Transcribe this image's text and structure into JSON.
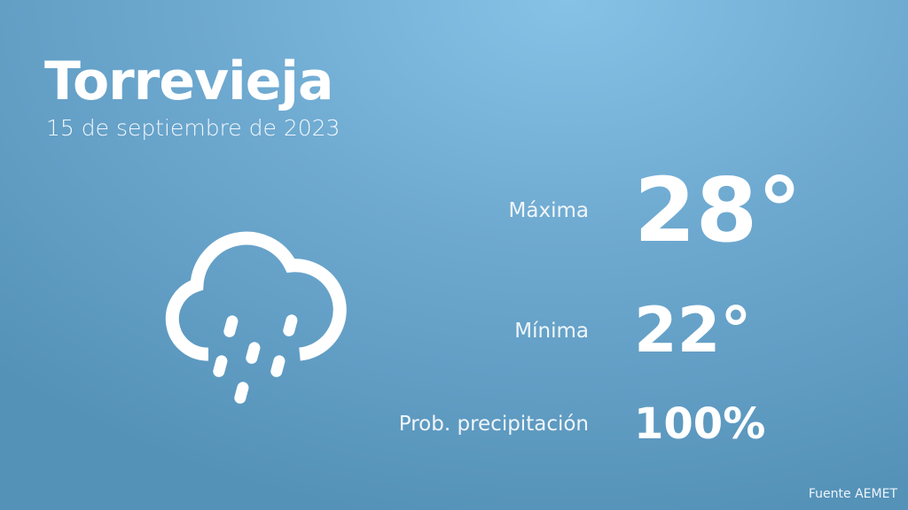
{
  "city": "Torrevieja",
  "date": "15 de septiembre de 2023",
  "weather_icon": "cloud-rain-icon",
  "max": {
    "label": "Máxima",
    "value": "28°"
  },
  "min": {
    "label": "Mínima",
    "value": "22°"
  },
  "precip": {
    "label": "Prob. precipitación",
    "value": "100%"
  },
  "footer": "Fuente AEMET"
}
